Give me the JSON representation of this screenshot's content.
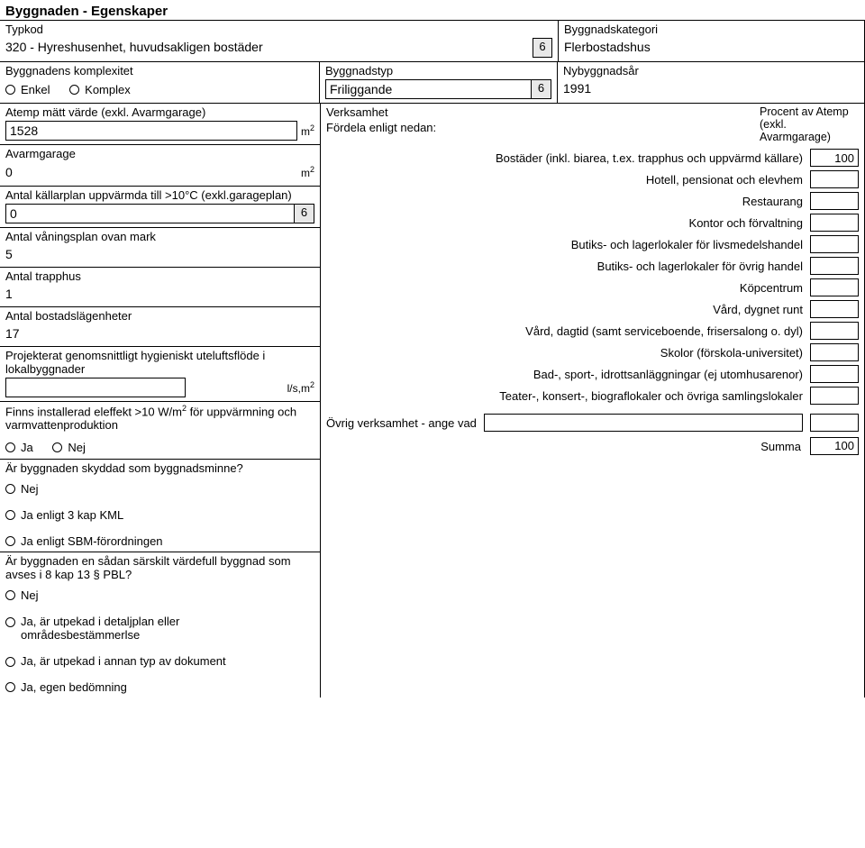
{
  "title": "Byggnaden - Egenskaper",
  "typkod": {
    "label": "Typkod",
    "value": "320 - Hyreshusenhet, huvudsakligen bostäder"
  },
  "kategori": {
    "label": "Byggnadskategori",
    "value": "Flerbostadshus"
  },
  "komplexitet": {
    "label": "Byggnadens komplexitet",
    "options": {
      "enkel": "Enkel",
      "komplex": "Komplex"
    }
  },
  "byggnadstyp": {
    "label": "Byggnadstyp",
    "value": "Friliggande"
  },
  "nybyggnadsar": {
    "label": "Nybyggnadsår",
    "value": "1991"
  },
  "atemp": {
    "label": "Atemp mätt värde (exkl. Avarmgarage)",
    "value": "1528",
    "unit_html": "m²"
  },
  "avarmgarage": {
    "label": "Avarmgarage",
    "value": "0",
    "unit_html": "m²"
  },
  "kallarplan": {
    "label": "Antal källarplan uppvärmda till >10°C (exkl.garageplan)",
    "value": "0"
  },
  "vaningsplan": {
    "label": "Antal våningsplan ovan mark",
    "value": "5"
  },
  "trapphus": {
    "label": "Antal trapphus",
    "value": "1"
  },
  "bostadslgh": {
    "label": "Antal bostadslägenheter",
    "value": "17"
  },
  "hygflode": {
    "label": "Projekterat genomsnittligt hygieniskt uteluftsflöde i lokalbyggnader",
    "value": "",
    "unit_html": "l/s,m²"
  },
  "eleffekt": {
    "label_html": "Finns installerad eleffekt >10 W/m² för uppvärmning och varmvattenproduktion",
    "options": {
      "ja": "Ja",
      "nej": "Nej"
    }
  },
  "skyddad": {
    "label": "Är byggnaden skyddad som byggnadsminne?",
    "options": {
      "nej": "Nej",
      "ja3kml": "Ja enligt 3 kap KML",
      "jasbm": "Ja enligt SBM-förordningen"
    }
  },
  "vardefull": {
    "label": "Är byggnaden en sådan särskilt värdefull byggnad som avses i 8 kap 13 § PBL?",
    "options": {
      "nej": "Nej",
      "jadetalj": "Ja, är utpekad i detaljplan eller områdesbestämmerlse",
      "jaannan": "Ja, är utpekad i annan typ av dokument",
      "jaegen": "Ja, egen bedömning"
    }
  },
  "verksamhet": {
    "header1": "Verksamhet",
    "header2": "Fördela enligt nedan:",
    "procent_header": "Procent av Atemp (exkl. Avarmgarage)",
    "rows": [
      {
        "label": "Bostäder (inkl. biarea, t.ex. trapphus och uppvärmd källare)",
        "value": "100"
      },
      {
        "label": "Hotell, pensionat och elevhem",
        "value": ""
      },
      {
        "label": "Restaurang",
        "value": ""
      },
      {
        "label": "Kontor och förvaltning",
        "value": ""
      },
      {
        "label": "Butiks- och lagerlokaler för livsmedelshandel",
        "value": ""
      },
      {
        "label": "Butiks- och lagerlokaler för övrig handel",
        "value": ""
      },
      {
        "label": "Köpcentrum",
        "value": ""
      },
      {
        "label": "Vård, dygnet runt",
        "value": ""
      },
      {
        "label": "Vård, dagtid (samt serviceboende, frisersalong o. dyl)",
        "value": ""
      },
      {
        "label": "Skolor (förskola-universitet)",
        "value": ""
      },
      {
        "label": "Bad-, sport-, idrottsanläggningar (ej utomhusarenor)",
        "value": ""
      },
      {
        "label": "Teater-, konsert-, biograflokaler och övriga samlingslokaler",
        "value": ""
      }
    ],
    "ovrig_label": "Övrig verksamhet - ange vad",
    "ovrig_text": "",
    "ovrig_value": "",
    "summa_label": "Summa",
    "summa_value": "100"
  }
}
